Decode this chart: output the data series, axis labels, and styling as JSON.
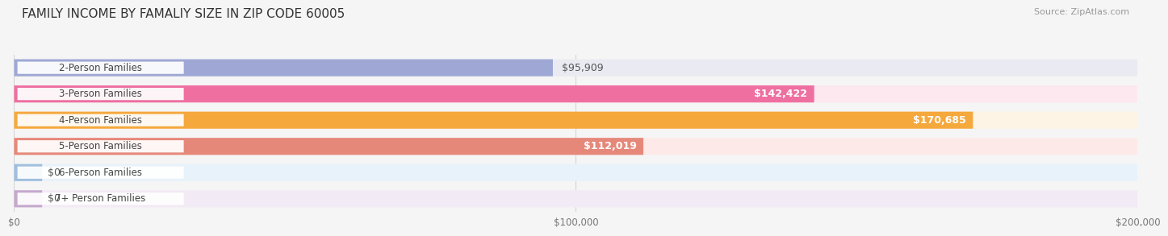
{
  "title": "FAMILY INCOME BY FAMALIY SIZE IN ZIP CODE 60005",
  "source": "Source: ZipAtlas.com",
  "categories": [
    "2-Person Families",
    "3-Person Families",
    "4-Person Families",
    "5-Person Families",
    "6-Person Families",
    "7+ Person Families"
  ],
  "values": [
    95909,
    142422,
    170685,
    112019,
    0,
    0
  ],
  "labels": [
    "$95,909",
    "$142,422",
    "$170,685",
    "$112,019",
    "$0",
    "$0"
  ],
  "bar_colors": [
    "#9fa8d5",
    "#ee6fa0",
    "#f5a83c",
    "#e5887a",
    "#a0bede",
    "#c5a8cc"
  ],
  "bar_bg_colors": [
    "#eaeaf2",
    "#fde8f0",
    "#fef4e6",
    "#fdeae8",
    "#e8f2fa",
    "#f2eaf4"
  ],
  "xmax": 200000,
  "xticks": [
    0,
    100000,
    200000
  ],
  "xticklabels": [
    "$0",
    "$100,000",
    "$200,000"
  ],
  "background_color": "#f5f5f5",
  "title_fontsize": 11,
  "bar_height": 0.65,
  "label_fontsize": 9,
  "cat_fontsize": 8.5
}
